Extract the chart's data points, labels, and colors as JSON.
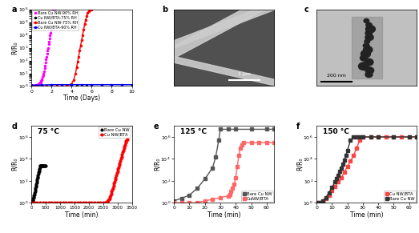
{
  "panel_a": {
    "title": "a",
    "xlabel": "Time (Days)",
    "ylabel": "R/R₀",
    "xlim": [
      0,
      10
    ],
    "ylim_log": [
      1.0,
      1000000.0
    ],
    "yticks": [
      1,
      10,
      100,
      1000,
      10000,
      100000,
      1000000
    ],
    "series": [
      {
        "label": "Bare Cu NW-90% RH",
        "color": "#FF00FF",
        "x": [
          0.05,
          0.1,
          0.15,
          0.2,
          0.25,
          0.3,
          0.35,
          0.4,
          0.45,
          0.5,
          0.55,
          0.6,
          0.65,
          0.7,
          0.75,
          0.8,
          0.85,
          0.9,
          0.95,
          1.0,
          1.05,
          1.1,
          1.15,
          1.2,
          1.25,
          1.3,
          1.35,
          1.4,
          1.45,
          1.5,
          1.55,
          1.6,
          1.65,
          1.7,
          1.75,
          1.8,
          1.85,
          1.9,
          1.95,
          2.0,
          2.02,
          2.04,
          2.06,
          2.08,
          2.1,
          2.12,
          2.14,
          2.16,
          2.18,
          2.2,
          2.22,
          2.24,
          2.26,
          2.28,
          2.3
        ],
        "y": [
          1.0,
          1.0,
          1.0,
          1.0,
          1.0,
          1.0,
          1.0,
          1.1,
          1.1,
          1.2,
          1.2,
          1.3,
          1.3,
          1.4,
          1.5,
          1.7,
          1.8,
          2.0,
          2.5,
          3.0,
          3.5,
          5.0,
          7.0,
          10.0,
          15.0,
          25.0,
          40.0,
          70.0,
          120.0,
          200.0,
          350.0,
          600.0,
          1000.0,
          1800.0,
          3000.0,
          5000.0,
          9000.0,
          15000.0,
          25000.0,
          60000.0,
          100000.0,
          180000.0,
          300000.0,
          500000.0,
          700000.0,
          900000.0,
          1000000.0,
          1000000.0,
          1000000.0,
          1000000.0,
          1000000.0,
          1000000.0,
          1000000.0,
          1000000.0,
          1000000.0
        ],
        "marker": "o",
        "markersize": 1.5,
        "linewidth": 0
      },
      {
        "label": "Cu NW/BTA-75% RH",
        "color": "#000000",
        "x": [
          0.0,
          0.5,
          1.0,
          1.5,
          2.0,
          2.5,
          3.0,
          3.5,
          4.0,
          4.5,
          5.0,
          5.5,
          6.0,
          7.0,
          8.0,
          9.0,
          10.0
        ],
        "y": [
          1.0,
          1.0,
          1.0,
          1.0,
          1.0,
          1.0,
          1.0,
          1.0,
          1.0,
          1.0,
          1.0,
          1.0,
          1.0,
          1.0,
          1.0,
          1.0,
          1.0
        ],
        "marker": "o",
        "markersize": 1.5,
        "linewidth": 0
      },
      {
        "label": "Bare Cu NW-75% RH",
        "color": "#FF0000",
        "x": [
          0.0,
          0.5,
          1.0,
          1.5,
          2.0,
          2.5,
          3.0,
          3.5,
          4.0,
          4.2,
          4.4,
          4.5,
          4.6,
          4.7,
          4.8,
          4.9,
          5.0,
          5.1,
          5.2,
          5.3,
          5.4,
          5.5,
          5.6,
          5.7,
          5.8,
          5.9,
          6.0
        ],
        "y": [
          1.0,
          1.0,
          1.0,
          1.0,
          1.0,
          1.0,
          1.0,
          1.0,
          1.5,
          3.0,
          10.0,
          30.0,
          80.0,
          200.0,
          600.0,
          1500.0,
          4000.0,
          10000.0,
          25000.0,
          70000.0,
          150000.0,
          300000.0,
          500000.0,
          700000.0,
          900000.0,
          1000000.0,
          1000000.0
        ],
        "marker": "o",
        "markersize": 1.5,
        "linewidth": 1.0
      },
      {
        "label": "Cu NW/BTA-90% RH",
        "color": "#0000FF",
        "x": [
          0.0,
          1.0,
          2.0,
          3.0,
          4.0,
          5.0,
          6.0,
          7.0,
          8.0,
          9.0,
          10.0
        ],
        "y": [
          1.2,
          1.2,
          1.3,
          1.3,
          1.3,
          1.3,
          1.3,
          1.3,
          1.3,
          1.3,
          1.3
        ],
        "marker": "o",
        "markersize": 1.5,
        "linewidth": 1.0
      }
    ]
  },
  "panel_d": {
    "title": "d",
    "temp_label": "75 °C",
    "xlabel": "Time (min)",
    "ylabel": "R/R₀",
    "xlim": [
      0,
      3500
    ],
    "xticks": [
      0,
      500,
      1000,
      1500,
      2000,
      2500,
      3000,
      3500
    ],
    "ylim_log": [
      1.0,
      10000000.0
    ],
    "series": [
      {
        "label": "Bare Cu NW",
        "color": "#000000",
        "x": [
          10,
          20,
          30,
          40,
          50,
          60,
          70,
          80,
          90,
          100,
          110,
          120,
          130,
          140,
          150,
          160,
          170,
          180,
          190,
          200,
          210,
          220,
          230,
          240,
          250,
          260,
          270,
          280,
          290,
          300,
          310,
          320,
          330,
          340,
          350,
          360,
          370,
          380,
          390,
          400,
          420,
          440,
          460,
          480,
          500
        ],
        "y": [
          1.1,
          1.2,
          1.3,
          1.5,
          1.8,
          2.2,
          2.8,
          3.5,
          4.5,
          6.0,
          8.0,
          11.0,
          15.0,
          20.0,
          28.0,
          38.0,
          52.0,
          70.0,
          95.0,
          130.0,
          180.0,
          240.0,
          320.0,
          430.0,
          570.0,
          750.0,
          1000.0,
          1300.0,
          1700.0,
          2200.0,
          2200.0,
          2200.0,
          2200.0,
          2200.0,
          2200.0,
          2200.0,
          2200.0,
          2200.0,
          2200.0,
          2200.0,
          2200.0,
          2200.0,
          2200.0,
          2200.0,
          2200.0
        ],
        "marker": "o",
        "markersize": 2,
        "linewidth": 0
      },
      {
        "label": "Cu NW/BTA",
        "color": "#FF0000",
        "x": [
          0,
          100,
          200,
          300,
          400,
          500,
          600,
          700,
          800,
          900,
          1000,
          1100,
          1200,
          1300,
          1400,
          1500,
          1600,
          1700,
          1800,
          1900,
          2000,
          2100,
          2200,
          2300,
          2400,
          2500,
          2550,
          2600,
          2620,
          2640,
          2660,
          2680,
          2700,
          2720,
          2740,
          2760,
          2780,
          2800,
          2820,
          2840,
          2860,
          2880,
          2900,
          2920,
          2940,
          2960,
          2980,
          3000,
          3020,
          3040,
          3060,
          3080,
          3100,
          3120,
          3140,
          3160,
          3180,
          3200,
          3220,
          3240,
          3260,
          3280,
          3300,
          3320,
          3340
        ],
        "y": [
          1.0,
          1.0,
          1.0,
          1.0,
          1.0,
          1.0,
          1.0,
          1.0,
          1.0,
          1.0,
          1.0,
          1.0,
          1.0,
          1.0,
          1.0,
          1.0,
          1.0,
          1.0,
          1.0,
          1.0,
          1.0,
          1.0,
          1.0,
          1.0,
          1.0,
          1.0,
          1.0,
          1.0,
          1.1,
          1.2,
          1.4,
          1.7,
          2.0,
          2.5,
          3.5,
          5.0,
          7.0,
          10.0,
          15.0,
          22.0,
          35.0,
          55.0,
          85.0,
          130.0,
          200.0,
          300.0,
          500.0,
          750.0,
          1200.0,
          1800.0,
          2800.0,
          4200.0,
          6500.0,
          10000.0,
          16000.0,
          25000.0,
          40000.0,
          60000.0,
          90000.0,
          140000.0,
          200000.0,
          300000.0,
          400000.0,
          500000.0,
          600000.0
        ],
        "marker": "o",
        "markersize": 2,
        "linewidth": 1.0
      }
    ]
  },
  "panel_e": {
    "title": "e",
    "temp_label": "125 °C",
    "xlabel": "Time (min)",
    "ylabel": "R/R₀",
    "xlim": [
      0,
      65
    ],
    "xticks": [
      0,
      10,
      20,
      30,
      40,
      50,
      60
    ],
    "ylim_log": [
      1.0,
      10000000.0
    ],
    "series": [
      {
        "label": "Bare Cu NW",
        "color": "#555555",
        "x": [
          0,
          5,
          10,
          15,
          20,
          25,
          27,
          29,
          30,
          35,
          40,
          50,
          60,
          65
        ],
        "y": [
          1.5,
          2.5,
          5.0,
          20.0,
          150.0,
          1500.0,
          15000.0,
          500000.0,
          5000000.0,
          5000000.0,
          5000000.0,
          5000000.0,
          5000000.0,
          5000000.0
        ],
        "marker": "s",
        "markersize": 2.5,
        "linewidth": 1.0
      },
      {
        "label": "CuNW/BTA",
        "color": "#FF6666",
        "x": [
          0,
          5,
          10,
          15,
          20,
          25,
          30,
          35,
          36,
          37,
          38,
          39,
          40,
          41,
          42,
          43,
          44,
          45,
          50,
          55,
          60,
          65
        ],
        "y": [
          1.0,
          1.0,
          1.0,
          1.0,
          1.5,
          2.0,
          3.0,
          4.0,
          6.0,
          10.0,
          20.0,
          50.0,
          200.0,
          2000.0,
          20000.0,
          100000.0,
          200000.0,
          300000.0,
          300000.0,
          300000.0,
          300000.0,
          300000.0
        ],
        "marker": "s",
        "markersize": 2.5,
        "linewidth": 1.0
      }
    ]
  },
  "panel_f": {
    "title": "f",
    "temp_label": "150 °C",
    "xlabel": "Time (min)",
    "ylabel": "R/R₀",
    "xlim": [
      0,
      65
    ],
    "xticks": [
      0,
      10,
      20,
      30,
      40,
      50,
      60
    ],
    "ylim_log": [
      1.0,
      10000000.0
    ],
    "series": [
      {
        "label": "Cu NW/BTA",
        "color": "#FF4444",
        "x": [
          0,
          2,
          4,
          6,
          8,
          10,
          12,
          14,
          16,
          18,
          20,
          22,
          24,
          26,
          28,
          30,
          35,
          40,
          45,
          50,
          55,
          60,
          65
        ],
        "y": [
          1.0,
          1.0,
          1.5,
          2.5,
          5.0,
          12.0,
          30.0,
          80.0,
          200.0,
          600.0,
          2000.0,
          6000.0,
          20000.0,
          100000.0,
          500000.0,
          1000000.0,
          1000000.0,
          1000000.0,
          1000000.0,
          1000000.0,
          1000000.0,
          1000000.0,
          1000000.0
        ],
        "marker": "s",
        "markersize": 2.5,
        "linewidth": 1.0
      },
      {
        "label": "Bare Cu NW",
        "color": "#333333",
        "x": [
          0,
          2,
          4,
          6,
          8,
          10,
          12,
          13,
          14,
          15,
          16,
          17,
          18,
          19,
          20,
          22,
          24,
          26,
          28,
          30,
          35,
          40,
          50,
          60,
          65
        ],
        "y": [
          1.0,
          1.0,
          1.5,
          3.0,
          8.0,
          25.0,
          80.0,
          160.0,
          320.0,
          700.0,
          1500.0,
          3500.0,
          8000.0,
          20000.0,
          60000.0,
          500000.0,
          1000000.0,
          1000000.0,
          1000000.0,
          1000000.0,
          1000000.0,
          1000000.0,
          1000000.0,
          1000000.0,
          1000000.0
        ],
        "marker": "s",
        "markersize": 2.5,
        "linewidth": 1.0
      }
    ]
  },
  "panel_b_color": "#787878",
  "panel_c_color": "#b0b0b0",
  "background_color": "#ffffff"
}
